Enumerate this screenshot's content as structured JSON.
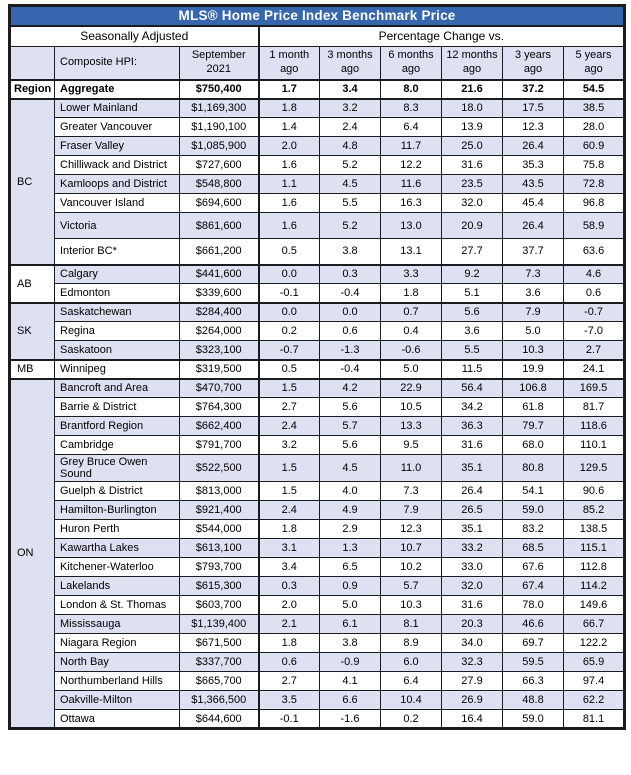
{
  "title": "MLS® Home Price Index Benchmark Price",
  "header": {
    "seasonally_adjusted": "Seasonally Adjusted",
    "percentage_change": "Percentage Change vs.",
    "region_label": "Region",
    "composite_label": "Composite HPI:",
    "month_label": "September 2021",
    "periods": [
      "1 month ago",
      "3 months ago",
      "6 months ago",
      "12 months ago",
      "3 years ago",
      "5 years ago"
    ]
  },
  "aggregate": {
    "name": "Aggregate",
    "price": "$750,400",
    "changes": [
      "1.7",
      "3.4",
      "8.0",
      "21.6",
      "37.2",
      "54.5"
    ]
  },
  "groups": [
    {
      "region": "BC",
      "rows": [
        {
          "name": "Lower Mainland",
          "price": "$1,169,300",
          "changes": [
            "1.8",
            "3.2",
            "8.3",
            "18.0",
            "17.5",
            "38.5"
          ]
        },
        {
          "name": "Greater Vancouver",
          "price": "$1,190,100",
          "changes": [
            "1.4",
            "2.4",
            "6.4",
            "13.9",
            "12.3",
            "28.0"
          ]
        },
        {
          "name": "Fraser Valley",
          "price": "$1,085,900",
          "changes": [
            "2.0",
            "4.8",
            "11.7",
            "25.0",
            "26.4",
            "60.9"
          ]
        },
        {
          "name": "Chilliwack and District",
          "price": "$727,600",
          "changes": [
            "1.6",
            "5.2",
            "12.2",
            "31.6",
            "35.3",
            "75.8"
          ]
        },
        {
          "name": "Kamloops and District",
          "price": "$548,800",
          "changes": [
            "1.1",
            "4.5",
            "11.6",
            "23.5",
            "43.5",
            "72.8"
          ]
        },
        {
          "name": "Vancouver Island",
          "price": "$694,600",
          "changes": [
            "1.6",
            "5.5",
            "16.3",
            "32.0",
            "45.4",
            "96.8"
          ]
        },
        {
          "name": "Victoria",
          "price": "$861,600",
          "changes": [
            "1.6",
            "5.2",
            "13.0",
            "20.9",
            "26.4",
            "58.9"
          ],
          "tall": true
        },
        {
          "name": "Interior BC*",
          "price": "$661,200",
          "changes": [
            "0.5",
            "3.8",
            "13.1",
            "27.7",
            "37.7",
            "63.6"
          ],
          "tall": true
        }
      ]
    },
    {
      "region": "AB",
      "rows": [
        {
          "name": "Calgary",
          "price": "$441,600",
          "changes": [
            "0.0",
            "0.3",
            "3.3",
            "9.2",
            "7.3",
            "4.6"
          ]
        },
        {
          "name": "Edmonton",
          "price": "$339,600",
          "changes": [
            "-0.1",
            "-0.4",
            "1.8",
            "5.1",
            "3.6",
            "0.6"
          ]
        }
      ]
    },
    {
      "region": "SK",
      "rows": [
        {
          "name": "Saskatchewan",
          "price": "$284,400",
          "changes": [
            "0.0",
            "0.0",
            "0.7",
            "5.6",
            "7.9",
            "-0.7"
          ]
        },
        {
          "name": "Regina",
          "price": "$264,000",
          "changes": [
            "0.2",
            "0.6",
            "0.4",
            "3.6",
            "5.0",
            "-7.0"
          ]
        },
        {
          "name": "Saskatoon",
          "price": "$323,100",
          "changes": [
            "-0.7",
            "-1.3",
            "-0.6",
            "5.5",
            "10.3",
            "2.7"
          ]
        }
      ]
    },
    {
      "region": "MB",
      "rows": [
        {
          "name": "Winnipeg",
          "price": "$319,500",
          "changes": [
            "0.5",
            "-0.4",
            "5.0",
            "11.5",
            "19.9",
            "24.1"
          ]
        }
      ]
    },
    {
      "region": "ON",
      "rows": [
        {
          "name": "Bancroft and Area",
          "price": "$470,700",
          "changes": [
            "1.5",
            "4.2",
            "22.9",
            "56.4",
            "106.8",
            "169.5"
          ]
        },
        {
          "name": "Barrie & District",
          "price": "$764,300",
          "changes": [
            "2.7",
            "5.6",
            "10.5",
            "34.2",
            "61.8",
            "81.7"
          ]
        },
        {
          "name": "Brantford Region",
          "price": "$662,400",
          "changes": [
            "2.4",
            "5.7",
            "13.3",
            "36.3",
            "79.7",
            "118.6"
          ]
        },
        {
          "name": "Cambridge",
          "price": "$791,700",
          "changes": [
            "3.2",
            "5.6",
            "9.5",
            "31.6",
            "68.0",
            "110.1"
          ]
        },
        {
          "name": "Grey Bruce Owen Sound",
          "price": "$522,500",
          "changes": [
            "1.5",
            "4.5",
            "11.0",
            "35.1",
            "80.8",
            "129.5"
          ]
        },
        {
          "name": "Guelph & District",
          "price": "$813,000",
          "changes": [
            "1.5",
            "4.0",
            "7.3",
            "26.4",
            "54.1",
            "90.6"
          ]
        },
        {
          "name": "Hamilton-Burlington",
          "price": "$921,400",
          "changes": [
            "2.4",
            "4.9",
            "7.9",
            "26.5",
            "59.0",
            "85.2"
          ]
        },
        {
          "name": "Huron Perth",
          "price": "$544,000",
          "changes": [
            "1.8",
            "2.9",
            "12.3",
            "35.1",
            "83.2",
            "138.5"
          ]
        },
        {
          "name": "Kawartha Lakes",
          "price": "$613,100",
          "changes": [
            "3.1",
            "1.3",
            "10.7",
            "33.2",
            "68.5",
            "115.1"
          ]
        },
        {
          "name": "Kitchener-Waterloo",
          "price": "$793,700",
          "changes": [
            "3.4",
            "6.5",
            "10.2",
            "33.0",
            "67.6",
            "112.8"
          ]
        },
        {
          "name": "Lakelands",
          "price": "$615,300",
          "changes": [
            "0.3",
            "0.9",
            "5.7",
            "32.0",
            "67.4",
            "114.2"
          ]
        },
        {
          "name": "London & St. Thomas",
          "price": "$603,700",
          "changes": [
            "2.0",
            "5.0",
            "10.3",
            "31.6",
            "78.0",
            "149.6"
          ]
        },
        {
          "name": "Mississauga",
          "price": "$1,139,400",
          "changes": [
            "2.1",
            "6.1",
            "8.1",
            "20.3",
            "46.6",
            "66.7"
          ]
        },
        {
          "name": "Niagara Region",
          "price": "$671,500",
          "changes": [
            "1.8",
            "3.8",
            "8.9",
            "34.0",
            "69.7",
            "122.2"
          ]
        },
        {
          "name": "North Bay",
          "price": "$337,700",
          "changes": [
            "0.6",
            "-0.9",
            "6.0",
            "32.3",
            "59.5",
            "65.9"
          ]
        },
        {
          "name": "Northumberland Hills",
          "price": "$665,700",
          "changes": [
            "2.7",
            "4.1",
            "6.4",
            "27.9",
            "66.3",
            "97.4"
          ]
        },
        {
          "name": "Oakville-Milton",
          "price": "$1,366,500",
          "changes": [
            "3.5",
            "6.6",
            "10.4",
            "26.9",
            "48.8",
            "62.2"
          ]
        },
        {
          "name": "Ottawa",
          "price": "$644,600",
          "changes": [
            "-0.1",
            "-1.6",
            "0.2",
            "16.4",
            "59.0",
            "81.1"
          ]
        }
      ]
    }
  ],
  "colors": {
    "title_bg": "#3566ae",
    "row_shade": "#dee1f2",
    "border": "#1b1c1f"
  }
}
